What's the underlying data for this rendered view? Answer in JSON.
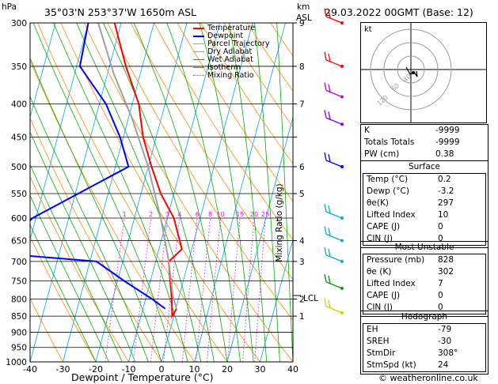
{
  "header": {
    "pressure_unit": "hPa",
    "location": "35°03'N 253°37'W 1650m ASL",
    "height_unit_km": "km",
    "height_unit_asl": "ASL",
    "datetime": "29.03.2022 00GMT (Base: 12)"
  },
  "legend": [
    {
      "label": "Temperature",
      "color": "#ff0000"
    },
    {
      "label": "Dewpoint",
      "color": "#0000ff"
    },
    {
      "label": "Parcel Trajectory",
      "color": "#a0a0a0"
    },
    {
      "label": "Dry Adiabat",
      "color": "#ff8c00"
    },
    {
      "label": "Wet Adiabat",
      "color": "#00b000"
    },
    {
      "label": "Isotherm",
      "color": "#00a0ff"
    },
    {
      "label": "Mixing Ratio",
      "color": "#ff00ff"
    }
  ],
  "chart_data": {
    "type": "line",
    "title": "",
    "xlabel": "Dewpoint / Temperature (°C)",
    "ylabel": "Mixing Ratio (g/kg)",
    "x_ticks": [
      "-40",
      "-30",
      "-20",
      "-10",
      "0",
      "10",
      "20",
      "30",
      "40"
    ],
    "xlim": [
      -40,
      40
    ],
    "y_ticks": [
      "300",
      "350",
      "400",
      "450",
      "500",
      "550",
      "600",
      "650",
      "700",
      "750",
      "800",
      "850",
      "900",
      "950",
      "1000"
    ],
    "ylim": [
      1000,
      300
    ],
    "y_scale": "log",
    "km_ticks": [
      {
        "p": 300,
        "label": "9"
      },
      {
        "p": 350,
        "label": "8"
      },
      {
        "p": 400,
        "label": "7"
      },
      {
        "p": 450,
        "label": ""
      },
      {
        "p": 500,
        "label": "6"
      },
      {
        "p": 550,
        "label": "5"
      },
      {
        "p": 650,
        "label": "4"
      },
      {
        "p": 700,
        "label": "3"
      },
      {
        "p": 800,
        "label": "2"
      },
      {
        "p": 850,
        "label": "1"
      }
    ],
    "lcl": {
      "p": 790,
      "label": "LCL"
    },
    "mixing_ratio_labels": [
      "1",
      "2",
      "3",
      "4",
      "6",
      "8",
      "10",
      "15",
      "20",
      "25"
    ],
    "series": [
      {
        "name": "Temperature",
        "color": "#ff0000",
        "points": [
          [
            0.2,
            828
          ],
          [
            -0.5,
            850
          ],
          [
            -2.0,
            800
          ],
          [
            -4.0,
            750
          ],
          [
            -6.0,
            700
          ],
          [
            -3.0,
            670
          ],
          [
            -8.0,
            600
          ],
          [
            -14.0,
            550
          ],
          [
            -19.0,
            500
          ],
          [
            -24.0,
            450
          ],
          [
            -28.0,
            400
          ],
          [
            -35.0,
            350
          ],
          [
            -42.0,
            300
          ]
        ]
      },
      {
        "name": "Dewpoint",
        "color": "#0000ff",
        "points": [
          [
            -3.2,
            828
          ],
          [
            -8.0,
            800
          ],
          [
            -18.0,
            750
          ],
          [
            -28.0,
            700
          ],
          [
            -59.0,
            680
          ],
          [
            -51.0,
            600
          ],
          [
            -26.0,
            500
          ],
          [
            -31.0,
            450
          ],
          [
            -38.0,
            400
          ],
          [
            -49.0,
            350
          ],
          [
            -50.0,
            300
          ]
        ]
      },
      {
        "name": "Parcel Trajectory",
        "color": "#a0a0a0",
        "points": [
          [
            0.2,
            828
          ],
          [
            -2.0,
            790
          ],
          [
            -6.0,
            700
          ],
          [
            -12.0,
            600
          ],
          [
            -20.0,
            500
          ],
          [
            -29.0,
            420
          ],
          [
            -38.0,
            360
          ],
          [
            -47.0,
            300
          ]
        ]
      }
    ]
  },
  "hodograph": {
    "unit_label": "kt",
    "ring_labels": [
      "40",
      "60",
      "120"
    ]
  },
  "table1": [
    {
      "k": "K",
      "v": "-9999"
    },
    {
      "k": "Totals Totals",
      "v": "-9999"
    },
    {
      "k": "PW (cm)",
      "v": "0.38"
    }
  ],
  "surface": {
    "title": "Surface",
    "rows": [
      {
        "k": "Temp (°C)",
        "v": "0.2"
      },
      {
        "k": "Dewp (°C)",
        "v": "-3.2"
      },
      {
        "k": "θe(K)",
        "v": "297"
      },
      {
        "k": "Lifted Index",
        "v": "10"
      },
      {
        "k": "CAPE (J)",
        "v": "0"
      },
      {
        "k": "CIN (J)",
        "v": "0"
      }
    ]
  },
  "most_unstable": {
    "title": "Most Unstable",
    "rows": [
      {
        "k": "Pressure (mb)",
        "v": "828"
      },
      {
        "k": "θe (K)",
        "v": "302"
      },
      {
        "k": "Lifted Index",
        "v": "7"
      },
      {
        "k": "CAPE (J)",
        "v": "0"
      },
      {
        "k": "CIN (J)",
        "v": "0"
      }
    ]
  },
  "hodograph_table": {
    "title": "Hodograph",
    "rows": [
      {
        "k": "EH",
        "v": "-79"
      },
      {
        "k": "SREH",
        "v": "-30"
      },
      {
        "k": "StmDir",
        "v": "308°"
      },
      {
        "k": "StmSpd (kt)",
        "v": "24"
      }
    ]
  },
  "footer": {
    "copyright": "© weatheronline.co.uk"
  }
}
